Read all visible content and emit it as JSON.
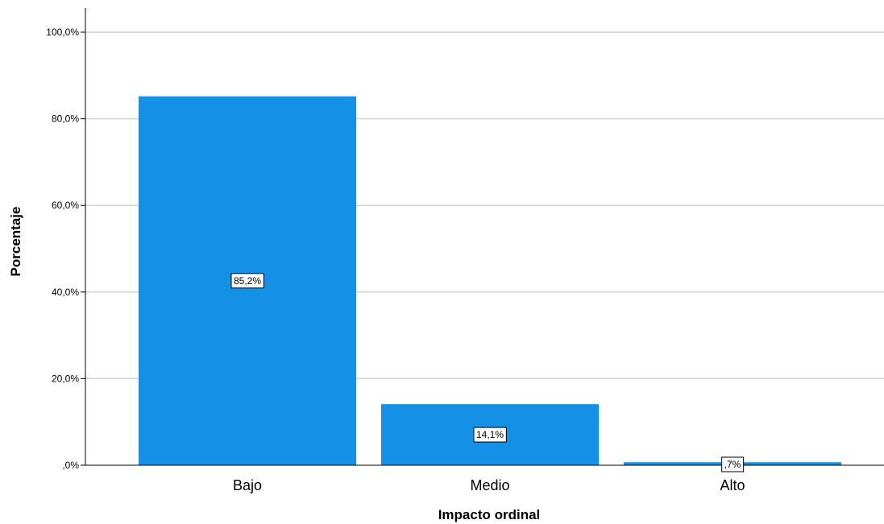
{
  "chart_data": {
    "type": "bar",
    "categories": [
      "Bajo",
      "Medio",
      "Alto"
    ],
    "values": [
      85.2,
      14.1,
      0.7
    ],
    "data_labels": [
      "85,2%",
      "14,1%",
      ",7%"
    ],
    "xlabel": "Impacto ordinal",
    "ylabel": "Porcentaje",
    "ylim": [
      0,
      105
    ],
    "yticks": [
      0,
      20,
      40,
      60,
      80,
      100
    ],
    "ytick_labels": [
      ",0%",
      "20,0%",
      "40,0%",
      "60,0%",
      "80,0%",
      "100,0%"
    ],
    "grid": true,
    "bar_color": "#1490E6",
    "grid_color": "#D0D0D0"
  }
}
